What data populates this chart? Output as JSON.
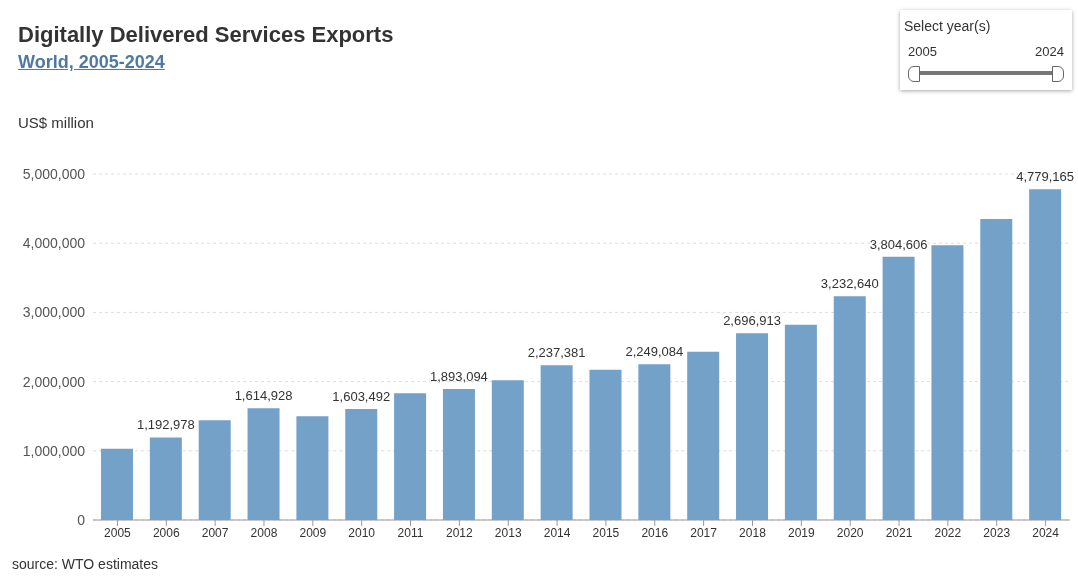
{
  "chart_data": {
    "type": "bar",
    "title": "Digitally Delivered Services Exports",
    "subtitle": "World, 2005-2024",
    "ylabel": "US$ million",
    "categories": [
      "2005",
      "2006",
      "2007",
      "2008",
      "2009",
      "2010",
      "2011",
      "2012",
      "2013",
      "2014",
      "2015",
      "2016",
      "2017",
      "2018",
      "2019",
      "2020",
      "2021",
      "2022",
      "2023",
      "2024"
    ],
    "values": [
      1030000,
      1192978,
      1440000,
      1614928,
      1500000,
      1603492,
      1830000,
      1893094,
      2020000,
      2237381,
      2170000,
      2249084,
      2430000,
      2696913,
      2820000,
      3232640,
      3804606,
      3970000,
      4350000,
      4779165
    ],
    "value_labels": [
      null,
      "1,192,978",
      null,
      "1,614,928",
      null,
      "1,603,492",
      null,
      "1,893,094",
      null,
      "2,237,381",
      null,
      "2,249,084",
      null,
      "2,696,913",
      null,
      "3,232,640",
      "3,804,606",
      null,
      null,
      "4,779,165"
    ],
    "color": "#73a1c8",
    "ylim": [
      0,
      5000000
    ],
    "yticks": [
      0,
      {
        "value": 1000000,
        "label": "1,000,000"
      },
      {
        "value": 2000000,
        "label": "2,000,000"
      },
      {
        "value": 3000000,
        "label": "3,000,000"
      },
      {
        "value": 4000000,
        "label": "4,000,000"
      },
      {
        "value": 5000000,
        "label": "5,000,000"
      }
    ],
    "grid": "y",
    "annotations": [
      "source: WTO estimates",
      "Select year(s)",
      "2005",
      "2024"
    ]
  }
}
